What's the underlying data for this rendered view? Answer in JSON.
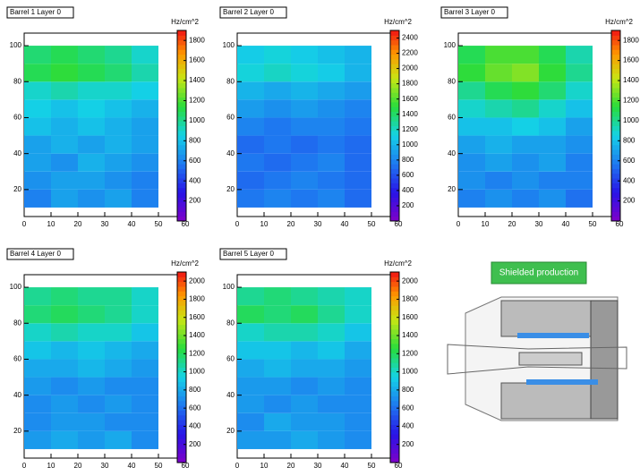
{
  "chart_data": [
    {
      "type": "heatmap",
      "title": "Barrel 1 Layer 0",
      "zlabel": "Hz/cm^2",
      "colorscale": "rainbow",
      "xlim": [
        0,
        60
      ],
      "xticks": [
        0,
        10,
        20,
        30,
        40,
        50,
        60
      ],
      "ylim": [
        5,
        107
      ],
      "yticks": [
        20,
        40,
        60,
        80,
        100
      ],
      "zlim": [
        0,
        1900
      ],
      "zticks": [
        200,
        400,
        600,
        800,
        1000,
        1200,
        1400,
        1600,
        1800
      ],
      "xbins": [
        0,
        10,
        20,
        30,
        40,
        50
      ],
      "ybins": [
        10,
        20,
        30,
        40,
        50,
        60,
        70,
        80,
        90,
        100
      ],
      "z": [
        [
          600,
          700,
          650,
          700,
          600
        ],
        [
          650,
          700,
          700,
          650,
          600
        ],
        [
          700,
          650,
          750,
          700,
          650
        ],
        [
          700,
          750,
          700,
          750,
          700
        ],
        [
          800,
          750,
          800,
          750,
          700
        ],
        [
          850,
          800,
          850,
          800,
          750
        ],
        [
          900,
          950,
          900,
          900,
          850
        ],
        [
          1100,
          1150,
          1100,
          1050,
          950
        ],
        [
          1050,
          1100,
          1050,
          1000,
          900
        ]
      ]
    },
    {
      "type": "heatmap",
      "title": "Barrel 2 Layer 0",
      "zlabel": "Hz/cm^2",
      "colorscale": "rainbow",
      "xlim": [
        0,
        60
      ],
      "xticks": [
        0,
        10,
        20,
        30,
        40,
        50,
        60
      ],
      "ylim": [
        5,
        107
      ],
      "yticks": [
        20,
        40,
        60,
        80,
        100
      ],
      "zlim": [
        0,
        2500
      ],
      "zticks": [
        200,
        400,
        600,
        800,
        1000,
        1200,
        1400,
        1600,
        1800,
        2000,
        2200,
        2400
      ],
      "xbins": [
        0,
        10,
        20,
        30,
        40,
        50
      ],
      "ybins": [
        10,
        20,
        30,
        40,
        50,
        60,
        70,
        80,
        90,
        100
      ],
      "z": [
        [
          750,
          800,
          750,
          800,
          700
        ],
        [
          700,
          750,
          800,
          750,
          700
        ],
        [
          750,
          700,
          750,
          800,
          700
        ],
        [
          700,
          750,
          700,
          750,
          700
        ],
        [
          800,
          750,
          800,
          800,
          750
        ],
        [
          900,
          850,
          900,
          850,
          800
        ],
        [
          1000,
          950,
          1000,
          950,
          900
        ],
        [
          1150,
          1200,
          1150,
          1100,
          1000
        ],
        [
          1100,
          1150,
          1100,
          1050,
          1000
        ]
      ]
    },
    {
      "type": "heatmap",
      "title": "Barrel 3 Layer 0",
      "zlabel": "Hz/cm^2",
      "colorscale": "rainbow",
      "xlim": [
        0,
        60
      ],
      "xticks": [
        0,
        10,
        20,
        30,
        40,
        50,
        60
      ],
      "ylim": [
        5,
        107
      ],
      "yticks": [
        20,
        40,
        60,
        80,
        100
      ],
      "zlim": [
        0,
        1900
      ],
      "zticks": [
        200,
        400,
        600,
        800,
        1000,
        1200,
        1400,
        1600,
        1800
      ],
      "xbins": [
        0,
        10,
        20,
        30,
        40,
        50
      ],
      "ybins": [
        10,
        20,
        30,
        40,
        50,
        60,
        70,
        80,
        90,
        100
      ],
      "z": [
        [
          600,
          650,
          600,
          650,
          550
        ],
        [
          650,
          600,
          650,
          600,
          600
        ],
        [
          650,
          700,
          650,
          700,
          600
        ],
        [
          700,
          750,
          700,
          700,
          650
        ],
        [
          800,
          800,
          850,
          800,
          700
        ],
        [
          900,
          950,
          1000,
          900,
          800
        ],
        [
          1000,
          1100,
          1150,
          1050,
          900
        ],
        [
          1150,
          1250,
          1300,
          1150,
          1000
        ],
        [
          1100,
          1200,
          1200,
          1100,
          950
        ]
      ]
    },
    {
      "type": "heatmap",
      "title": "Barrel 4 Layer 0",
      "zlabel": "Hz/cm^2",
      "colorscale": "rainbow",
      "xlim": [
        0,
        60
      ],
      "xticks": [
        0,
        10,
        20,
        30,
        40,
        50,
        60
      ],
      "ylim": [
        5,
        107
      ],
      "yticks": [
        20,
        40,
        60,
        80,
        100
      ],
      "zlim": [
        0,
        2100
      ],
      "zticks": [
        200,
        400,
        600,
        800,
        1000,
        1200,
        1400,
        1600,
        1800,
        2000
      ],
      "xbins": [
        0,
        10,
        20,
        30,
        40,
        50
      ],
      "ybins": [
        10,
        20,
        30,
        40,
        50,
        60,
        70,
        80,
        90,
        100
      ],
      "z": [
        [
          750,
          800,
          750,
          800,
          700
        ],
        [
          700,
          750,
          750,
          700,
          700
        ],
        [
          700,
          750,
          700,
          750,
          700
        ],
        [
          750,
          700,
          750,
          700,
          700
        ],
        [
          800,
          800,
          850,
          800,
          750
        ],
        [
          900,
          850,
          900,
          850,
          800
        ],
        [
          1000,
          1050,
          1000,
          1000,
          900
        ],
        [
          1150,
          1200,
          1150,
          1100,
          1000
        ],
        [
          1100,
          1150,
          1100,
          1100,
          1000
        ]
      ]
    },
    {
      "type": "heatmap",
      "title": "Barrel 5 Layer 0",
      "zlabel": "Hz/cm^2",
      "colorscale": "rainbow",
      "xlim": [
        0,
        60
      ],
      "xticks": [
        0,
        10,
        20,
        30,
        40,
        50,
        60
      ],
      "ylim": [
        5,
        107
      ],
      "yticks": [
        20,
        40,
        60,
        80,
        100
      ],
      "zlim": [
        0,
        2100
      ],
      "zticks": [
        200,
        400,
        600,
        800,
        1000,
        1200,
        1400,
        1600,
        1800,
        2000
      ],
      "xbins": [
        0,
        10,
        20,
        30,
        40,
        50
      ],
      "ybins": [
        10,
        20,
        30,
        40,
        50,
        60,
        70,
        80,
        90,
        100
      ],
      "z": [
        [
          750,
          750,
          800,
          750,
          700
        ],
        [
          700,
          800,
          750,
          750,
          700
        ],
        [
          750,
          700,
          750,
          700,
          700
        ],
        [
          750,
          750,
          700,
          750,
          700
        ],
        [
          800,
          850,
          800,
          800,
          750
        ],
        [
          900,
          900,
          850,
          900,
          800
        ],
        [
          1000,
          1050,
          1050,
          1000,
          900
        ],
        [
          1200,
          1150,
          1200,
          1100,
          1000
        ],
        [
          1100,
          1150,
          1100,
          1050,
          1000
        ]
      ]
    }
  ],
  "image": {
    "label": "Shielded production"
  }
}
